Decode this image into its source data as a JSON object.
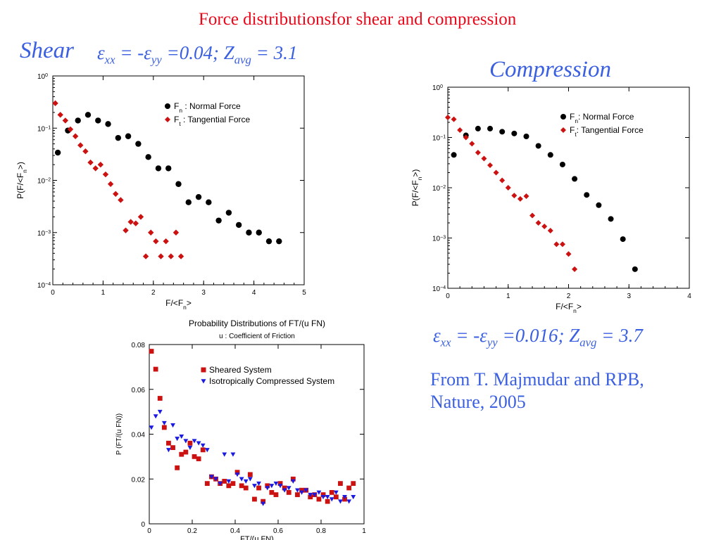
{
  "page": {
    "title": "Force distributionsfor shear and compression",
    "shear_heading": "Shear",
    "shear_eq": {
      "e1": "ε",
      "s1": "xx",
      "m1": " = -",
      "e2": "ε",
      "s2": "yy",
      "m2": " =0.04;   ",
      "z": "Z",
      "s3": "avg",
      "m3": " = 3.1"
    },
    "compression_heading": "Compression",
    "compression_eq": {
      "e1": "ε",
      "s1": "xx",
      "m1": " = -",
      "e2": "ε",
      "s2": "yy",
      "m2": " =0.016;   ",
      "z": "Z",
      "s3": "avg",
      "m3": " = 3.7"
    },
    "citation": [
      "From T. Majmudar and RPB,",
      " Nature, 2005"
    ],
    "colors": {
      "accent_red": "#e8081a",
      "accent_blue": "#3a5fe0",
      "series_black": "#000000",
      "series_red": "#cc1111",
      "series_blue": "#1a1ae0"
    }
  },
  "chart_data": [
    {
      "id": "shear",
      "type": "scatter",
      "ylog": true,
      "xlim": [
        0,
        5
      ],
      "ylim": [
        0.0001,
        1
      ],
      "x_ticks": [
        0,
        1,
        2,
        3,
        4,
        5
      ],
      "y_ticks": [
        {
          "base": "10",
          "exp": "0",
          "v": 1
        },
        {
          "base": "10",
          "exp": "−1",
          "v": 0.1
        },
        {
          "base": "10",
          "exp": "−2",
          "v": 0.01
        },
        {
          "base": "10",
          "exp": "−3",
          "v": 0.001
        },
        {
          "base": "10",
          "exp": "−4",
          "v": 0.0001
        }
      ],
      "xlabel": {
        "main": "F/<F",
        "sub": "n",
        "end": ">"
      },
      "ylabel": {
        "main": "P(F/<F",
        "sub": "n",
        "end": ">)"
      },
      "legend": [
        {
          "marker": "circle",
          "main": "F",
          "sub": "n",
          "text": " : Normal Force"
        },
        {
          "marker": "diamond",
          "main": "F",
          "sub": "t",
          "text": " : Tangential Force"
        }
      ],
      "series": [
        {
          "marker": "circle",
          "x": [
            0.1,
            0.3,
            0.5,
            0.7,
            0.9,
            1.1,
            1.3,
            1.5,
            1.7,
            1.9,
            2.1,
            2.3,
            2.5,
            2.7,
            2.9,
            3.1,
            3.3,
            3.5,
            3.7,
            3.9,
            4.1,
            4.3,
            4.5
          ],
          "y": [
            0.034,
            0.09,
            0.14,
            0.18,
            0.14,
            0.12,
            0.065,
            0.07,
            0.05,
            0.028,
            0.017,
            0.017,
            0.0085,
            0.0038,
            0.0048,
            0.0038,
            0.0017,
            0.0024,
            0.0014,
            0.001,
            0.001,
            0.00068,
            0.00068
          ]
        },
        {
          "marker": "diamond",
          "x": [
            0.05,
            0.15,
            0.25,
            0.35,
            0.45,
            0.55,
            0.65,
            0.75,
            0.85,
            0.95,
            1.05,
            1.15,
            1.25,
            1.35,
            1.45,
            1.55,
            1.65,
            1.75,
            1.85,
            1.95,
            2.05,
            2.15,
            2.25,
            2.35,
            2.45,
            2.55
          ],
          "y": [
            0.3,
            0.18,
            0.14,
            0.095,
            0.07,
            0.047,
            0.036,
            0.022,
            0.017,
            0.02,
            0.013,
            0.0085,
            0.0055,
            0.0042,
            0.0011,
            0.0016,
            0.0015,
            0.002,
            0.00035,
            0.001,
            0.00068,
            0.00035,
            0.00068,
            0.00035,
            0.001,
            0.00035
          ]
        }
      ]
    },
    {
      "id": "compression",
      "type": "scatter",
      "ylog": true,
      "xlim": [
        0,
        4
      ],
      "ylim": [
        0.0001,
        1
      ],
      "x_ticks": [
        0,
        1,
        2,
        3,
        4
      ],
      "y_ticks": [
        {
          "base": "10",
          "exp": "0",
          "v": 1
        },
        {
          "base": "10",
          "exp": "−1",
          "v": 0.1
        },
        {
          "base": "10",
          "exp": "−2",
          "v": 0.01
        },
        {
          "base": "10",
          "exp": "−3",
          "v": 0.001
        },
        {
          "base": "10",
          "exp": "−4",
          "v": 0.0001
        }
      ],
      "xlabel": {
        "main": "F/<F",
        "sub": "n",
        "end": ">"
      },
      "ylabel": {
        "main": "P(F/<F",
        "sub": "n",
        "end": ">)"
      },
      "legend": [
        {
          "marker": "circle",
          "main": "F",
          "sub": "n",
          "text": ": Normal Force"
        },
        {
          "marker": "diamond",
          "main": "F",
          "sub": "t",
          "text": ": Tangential Force"
        }
      ],
      "series": [
        {
          "marker": "circle",
          "x": [
            0.1,
            0.3,
            0.5,
            0.7,
            0.9,
            1.1,
            1.3,
            1.5,
            1.7,
            1.9,
            2.1,
            2.3,
            2.5,
            2.7,
            2.9,
            3.1
          ],
          "y": [
            0.045,
            0.11,
            0.15,
            0.15,
            0.13,
            0.12,
            0.105,
            0.068,
            0.045,
            0.029,
            0.015,
            0.0072,
            0.0045,
            0.0024,
            0.00095,
            0.00024
          ]
        },
        {
          "marker": "diamond",
          "x": [
            0,
            0.1,
            0.2,
            0.3,
            0.4,
            0.5,
            0.6,
            0.7,
            0.8,
            0.9,
            1.0,
            1.1,
            1.2,
            1.3,
            1.4,
            1.5,
            1.6,
            1.7,
            1.8,
            1.9,
            2.0,
            2.1
          ],
          "y": [
            0.25,
            0.23,
            0.14,
            0.1,
            0.075,
            0.05,
            0.038,
            0.028,
            0.02,
            0.014,
            0.01,
            0.007,
            0.006,
            0.0068,
            0.0028,
            0.002,
            0.0017,
            0.0014,
            0.00075,
            0.00075,
            0.00048,
            0.00024
          ]
        }
      ]
    },
    {
      "id": "ft",
      "type": "scatter",
      "title": "Probability Distributions of  FT/(u FN)",
      "subtitle": "u :  Coefficient of Friction",
      "xlim": [
        0,
        1
      ],
      "ylim": [
        0,
        0.08
      ],
      "x_ticks": [
        0,
        0.2,
        0.4,
        0.6,
        0.8,
        1
      ],
      "x_tick_labels": [
        "0",
        "0.2",
        "0.4",
        "0.6",
        "0.8",
        "1"
      ],
      "y_ticks": [
        0,
        0.02,
        0.04,
        0.06,
        0.08
      ],
      "y_tick_labels": [
        "0",
        "0.02",
        "0.04",
        "0.06",
        "0.08"
      ],
      "xlabel": "FT/(u FN)",
      "ylabel": "P (FT/(u FN))",
      "legend": [
        {
          "marker": "square",
          "text": "Sheared System"
        },
        {
          "marker": "triangle",
          "text": "Isotropically Compressed System"
        }
      ],
      "series": [
        {
          "name": "Sheared System",
          "marker": "square",
          "x": [
            0.01,
            0.03,
            0.05,
            0.07,
            0.09,
            0.11,
            0.13,
            0.15,
            0.17,
            0.19,
            0.21,
            0.23,
            0.25,
            0.27,
            0.29,
            0.31,
            0.33,
            0.35,
            0.37,
            0.39,
            0.41,
            0.43,
            0.45,
            0.47,
            0.49,
            0.51,
            0.53,
            0.55,
            0.57,
            0.59,
            0.61,
            0.63,
            0.65,
            0.67,
            0.69,
            0.71,
            0.73,
            0.75,
            0.77,
            0.79,
            0.81,
            0.83,
            0.85,
            0.87,
            0.89,
            0.91,
            0.93,
            0.95
          ],
          "y": [
            0.077,
            0.069,
            0.056,
            0.043,
            0.036,
            0.034,
            0.025,
            0.031,
            0.032,
            0.036,
            0.03,
            0.029,
            0.033,
            0.018,
            0.021,
            0.02,
            0.018,
            0.019,
            0.017,
            0.018,
            0.023,
            0.017,
            0.016,
            0.022,
            0.011,
            0.016,
            0.01,
            0.017,
            0.014,
            0.013,
            0.018,
            0.016,
            0.014,
            0.02,
            0.013,
            0.015,
            0.015,
            0.012,
            0.013,
            0.011,
            0.013,
            0.01,
            0.014,
            0.012,
            0.018,
            0.011,
            0.016,
            0.018
          ]
        },
        {
          "name": "Isotropically Compressed System",
          "marker": "triangle",
          "x": [
            0.01,
            0.03,
            0.05,
            0.07,
            0.09,
            0.11,
            0.13,
            0.15,
            0.17,
            0.19,
            0.21,
            0.23,
            0.25,
            0.27,
            0.29,
            0.31,
            0.33,
            0.35,
            0.37,
            0.39,
            0.41,
            0.43,
            0.45,
            0.47,
            0.49,
            0.51,
            0.53,
            0.55,
            0.57,
            0.59,
            0.61,
            0.63,
            0.65,
            0.67,
            0.69,
            0.71,
            0.73,
            0.75,
            0.77,
            0.79,
            0.81,
            0.83,
            0.85,
            0.87,
            0.89,
            0.91,
            0.93,
            0.95
          ],
          "y": [
            0.043,
            0.048,
            0.05,
            0.045,
            0.033,
            0.044,
            0.038,
            0.039,
            0.037,
            0.034,
            0.037,
            0.036,
            0.035,
            0.033,
            0.021,
            0.02,
            0.018,
            0.031,
            0.019,
            0.031,
            0.022,
            0.02,
            0.019,
            0.02,
            0.017,
            0.018,
            0.009,
            0.016,
            0.017,
            0.018,
            0.017,
            0.015,
            0.016,
            0.019,
            0.015,
            0.014,
            0.015,
            0.013,
            0.013,
            0.014,
            0.012,
            0.012,
            0.011,
            0.014,
            0.01,
            0.012,
            0.01,
            0.012
          ]
        }
      ]
    }
  ]
}
